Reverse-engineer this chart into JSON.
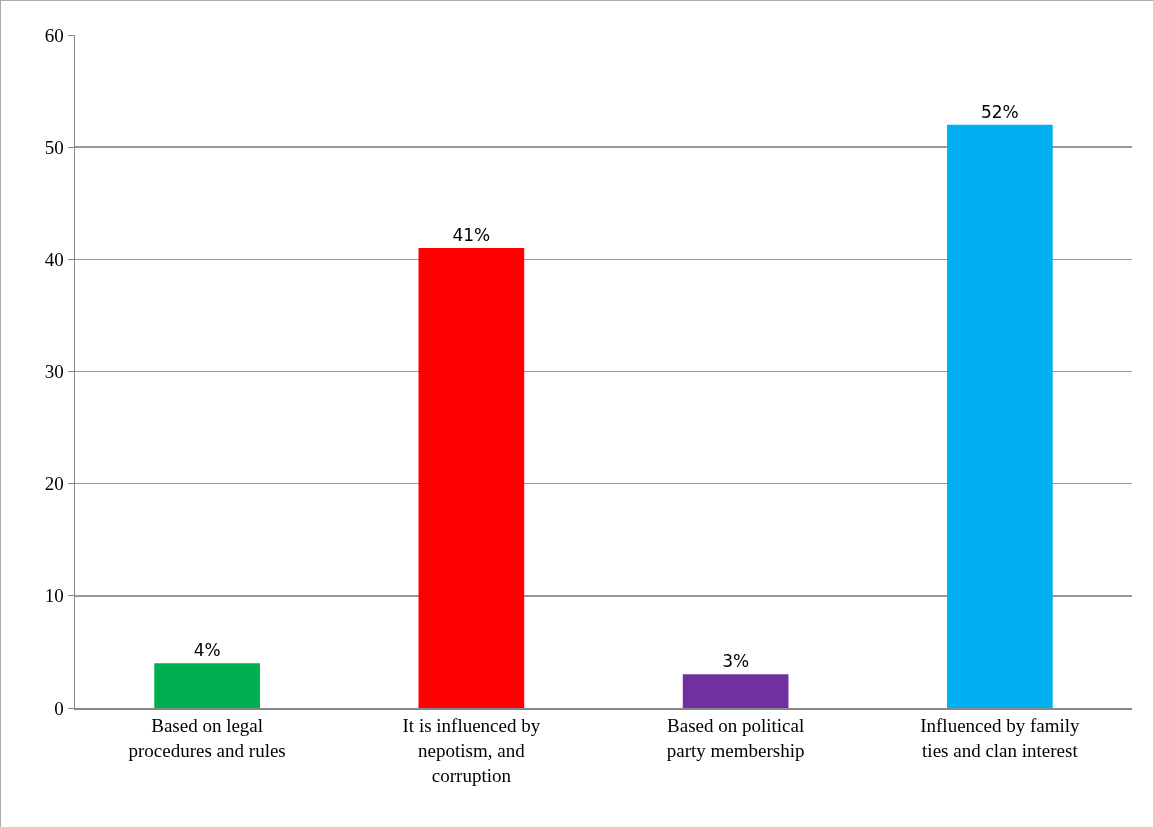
{
  "chart_data": {
    "type": "bar",
    "categories": [
      "Based on legal procedures and rules",
      "It is influenced by nepotism, and corruption",
      "Based on political party membership",
      "Influenced by family ties and clan interest"
    ],
    "values": [
      4,
      41,
      3,
      52
    ],
    "colors": [
      "#00b050",
      "#ff0000",
      "#7030a0",
      "#00b0f0"
    ],
    "value_labels": [
      "4%",
      "41%",
      "3%",
      "52%"
    ],
    "ylim": [
      0,
      60
    ],
    "yticks": [
      0,
      10,
      20,
      30,
      40,
      50,
      60
    ],
    "grid": "y"
  }
}
